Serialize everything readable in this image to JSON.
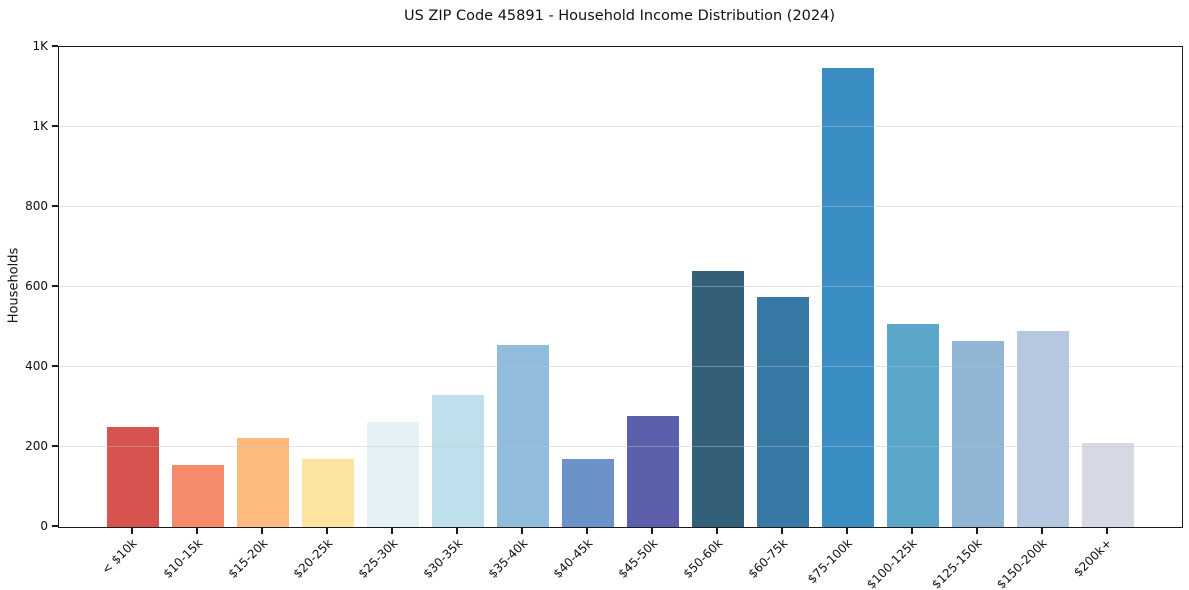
{
  "figure": {
    "background": "#ffffff",
    "text_color": "#111111",
    "spine_color": "#1a1a1a",
    "gridline_color": "#e4e4e8"
  },
  "chart_data": {
    "type": "bar",
    "title": "US ZIP Code 45891 - Household Income Distribution (2024)",
    "xlabel": "",
    "ylabel": "Households",
    "ylim": [
      0,
      1200
    ],
    "grid": "horizontal",
    "legend": "none",
    "x_tick_rotation_deg": 45,
    "y_ticks": [
      {
        "value": 0,
        "label": "0"
      },
      {
        "value": 200,
        "label": "200"
      },
      {
        "value": 400,
        "label": "400"
      },
      {
        "value": 600,
        "label": "600"
      },
      {
        "value": 800,
        "label": "800"
      },
      {
        "value": 1000,
        "label": "1K"
      },
      {
        "value": 1200,
        "label": "1K"
      }
    ],
    "categories": [
      "< $10k",
      "$10-15k",
      "$15-20k",
      "$20-25k",
      "$25-30k",
      "$30-35k",
      "$35-40k",
      "$40-45k",
      "$45-50k",
      "$50-60k",
      "$60-75k",
      "$75-100k",
      "$100-125k",
      "$125-150k",
      "$150-200k",
      "$200k+"
    ],
    "values": [
      250,
      155,
      222,
      170,
      263,
      330,
      455,
      170,
      277,
      640,
      575,
      1148,
      507,
      464,
      490,
      210
    ],
    "bar_colors": [
      "#d65350",
      "#f58a6c",
      "#fcba7d",
      "#fde4a0",
      "#e4f1f6",
      "#c0dfed",
      "#92bcdc",
      "#6b92c6",
      "#5c5fac",
      "#335f78",
      "#3779a5",
      "#3a8ec4",
      "#5ba7c9",
      "#90b5d5",
      "#b6c8df",
      "#d7d9e4"
    ]
  }
}
